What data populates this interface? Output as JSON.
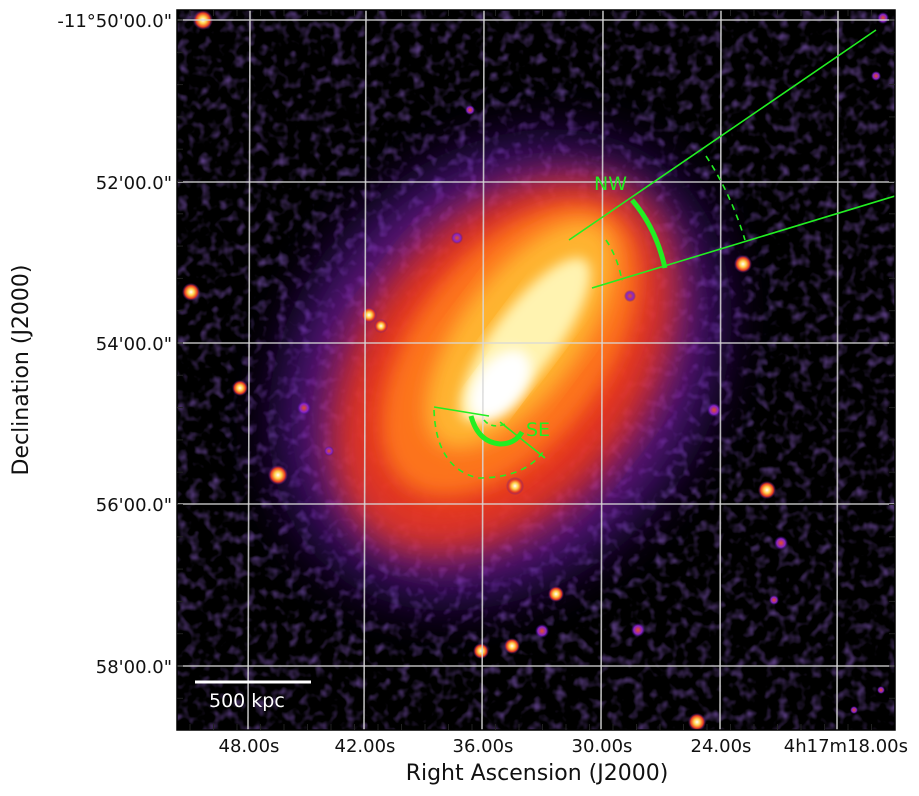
{
  "axes": {
    "xlabel": "Right Ascension (J2000)",
    "ylabel": "Declination (J2000)",
    "x_ticks": [
      "48.00s",
      "42.00s",
      "36.00s",
      "30.00s",
      "24.00s",
      "4h17m18.00s"
    ],
    "y_ticks": [
      "-11°50'00.0\"",
      "52'00.0\"",
      "54'00.0\"",
      "56'00.0\"",
      "58'00.0\""
    ]
  },
  "regions": {
    "nw_label": "NW",
    "se_label": "SE"
  },
  "scalebar": {
    "label": "500 kpc"
  },
  "colors": {
    "overlay_green": "#22ee22",
    "grid": "#d8d8d8",
    "background": "#000000"
  },
  "colormap": "gnuplot2-like (black to purple to red to orange to yellow to white)"
}
